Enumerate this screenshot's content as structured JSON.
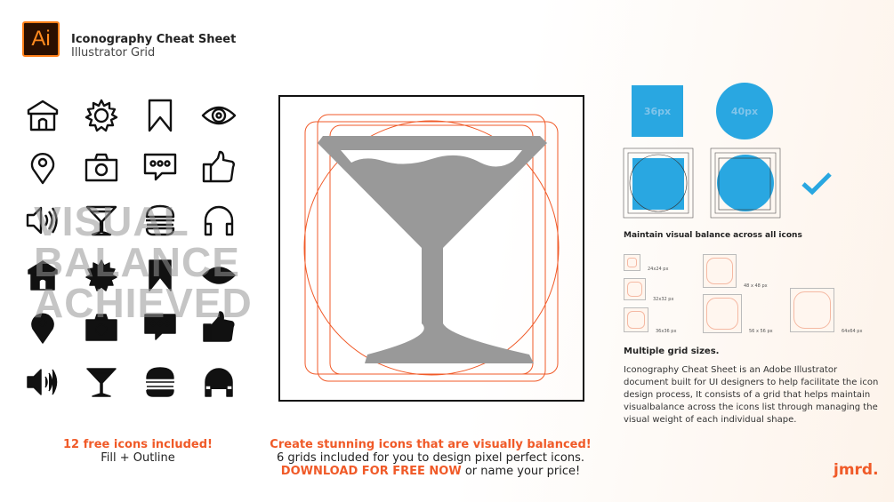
{
  "header": {
    "app_logo": "Ai",
    "title": "Iconography Cheat Sheet",
    "subtitle": "Illustrator Grid"
  },
  "icons": {
    "outline": [
      "house-icon",
      "gear-icon",
      "bookmark-icon",
      "eye-icon",
      "location-pin-icon",
      "camera-icon",
      "chat-icon",
      "thumbs-up-icon",
      "speaker-icon",
      "martini-icon",
      "burger-icon",
      "headphones-icon"
    ],
    "fill": [
      "house-icon",
      "gear-icon",
      "bookmark-icon",
      "eye-icon",
      "location-pin-icon",
      "camera-icon",
      "chat-icon",
      "thumbs-up-icon",
      "speaker-icon",
      "martini-icon",
      "burger-icon",
      "headphones-icon"
    ]
  },
  "watermark": [
    "VISUAL",
    "BALANCE",
    "ACHIEVED"
  ],
  "left_caption": {
    "line1": "12 free icons included!",
    "line2": "Fill + Outline"
  },
  "center_caption": {
    "line1": "Create stunning icons that are visually balanced!",
    "line2": "6 grids included for you to design pixel perfect icons.",
    "cta": "DOWNLOAD FOR FREE NOW",
    "line3_rest": " or name your price!"
  },
  "shapes": {
    "square": "36px",
    "circle": "40px"
  },
  "balance_heading": "Maintain visual balance across all icons",
  "grids": [
    "24x24 px",
    "32x32 px",
    "36x36 px",
    "48 x 48 px",
    "56 x 56 px",
    "64x64 px"
  ],
  "grids_heading": "Multiple grid sizes.",
  "description": "Iconography Cheat Sheet is an Adobe Illustrator document built for UI designers to help facilitate the icon design process, It consists of a grid that helps maintain visualbalance across the icons list through managing the visual weight of each individual shape.",
  "brand": "jmrd.",
  "colors": {
    "accent": "#f05a28",
    "blue": "#29a7e1",
    "grey": "#999999"
  }
}
